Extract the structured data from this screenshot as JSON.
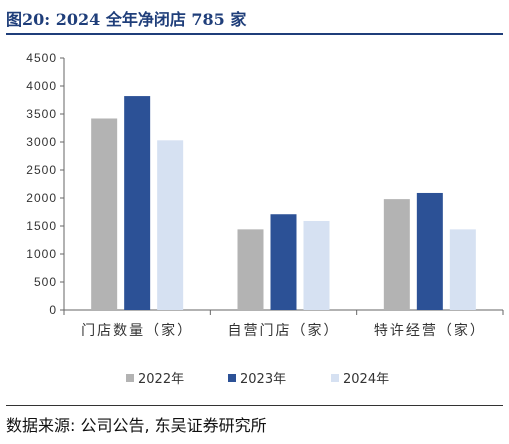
{
  "title": "图20:  2024 全年净闭店 785 家",
  "source": "数据来源:  公司公告,  东吴证券研究所",
  "colors": {
    "2022年": "#b3b3b3",
    "2023年": "#2c5196",
    "2024年": "#d6e1f2",
    "title": "#1f3e7a"
  },
  "chart_data": {
    "type": "bar",
    "title": "2024 全年净闭店 785 家",
    "categories": [
      "门店数量（家）",
      "自营门店（家）",
      "特许经营（家）"
    ],
    "series": [
      {
        "name": "2022年",
        "values": [
          3420,
          1440,
          1980
        ]
      },
      {
        "name": "2023年",
        "values": [
          3820,
          1710,
          2090
        ]
      },
      {
        "name": "2024年",
        "values": [
          3030,
          1590,
          1440
        ]
      }
    ],
    "ylim": [
      0,
      4500
    ],
    "yticks": [
      0,
      500,
      1000,
      1500,
      2000,
      2500,
      3000,
      3500,
      4000,
      4500
    ],
    "xlabel": "",
    "ylabel": "",
    "grid": false,
    "legend": "bottom"
  }
}
